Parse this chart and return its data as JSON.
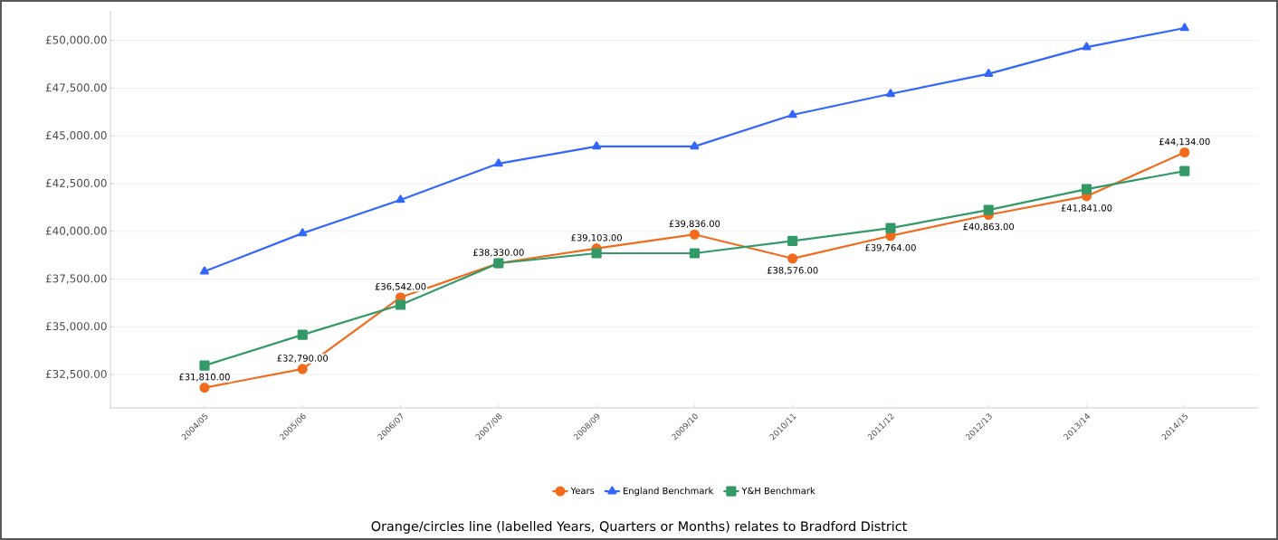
{
  "chart_data": {
    "type": "line",
    "categories": [
      "2004/05",
      "2005/06",
      "2006/07",
      "2007/08",
      "2008/09",
      "2009/10",
      "2010/11",
      "2011/12",
      "2012/13",
      "2013/14",
      "2014/15"
    ],
    "series": [
      {
        "name": "Years",
        "color": "#f26b1d",
        "marker": "circle",
        "values": [
          31810,
          32790,
          36542,
          38330,
          39103,
          39836,
          38576,
          39764,
          40863,
          41841,
          44134
        ],
        "value_labels": [
          "£31,810.00",
          "£32,790.00",
          "£36,542.00",
          "£38,330.00",
          "£39,103.00",
          "£39,836.00",
          "£38,576.00",
          "£39,764.00",
          "£40,863.00",
          "£41,841.00",
          "£44,134.00"
        ]
      },
      {
        "name": "England Benchmark",
        "color": "#3366ff",
        "marker": "triangle",
        "values": [
          37900,
          39900,
          41650,
          43550,
          44450,
          44450,
          46100,
          47200,
          48250,
          49650,
          50650
        ]
      },
      {
        "name": "Y&H Benchmark",
        "color": "#339966",
        "marker": "square",
        "values": [
          32970,
          34580,
          36150,
          38330,
          38850,
          38850,
          39500,
          40170,
          41120,
          42210,
          43160
        ]
      }
    ],
    "ylim": [
      30750,
      51550
    ],
    "yticks": [
      {
        "value": 32500,
        "label": "£32,500.00"
      },
      {
        "value": 35000,
        "label": "£35,000.00"
      },
      {
        "value": 37500,
        "label": "£37,500.00"
      },
      {
        "value": 40000,
        "label": "£40,000.00"
      },
      {
        "value": 42500,
        "label": "£42,500.00"
      },
      {
        "value": 45000,
        "label": "£45,000.00"
      },
      {
        "value": 47500,
        "label": "£47,500.00"
      },
      {
        "value": 50000,
        "label": "£50,000.00"
      }
    ],
    "grid": "y",
    "legend": "bottom",
    "annotations": [
      "Orange/circles line (labelled Years, Quarters or Months) relates to Bradford District"
    ]
  }
}
